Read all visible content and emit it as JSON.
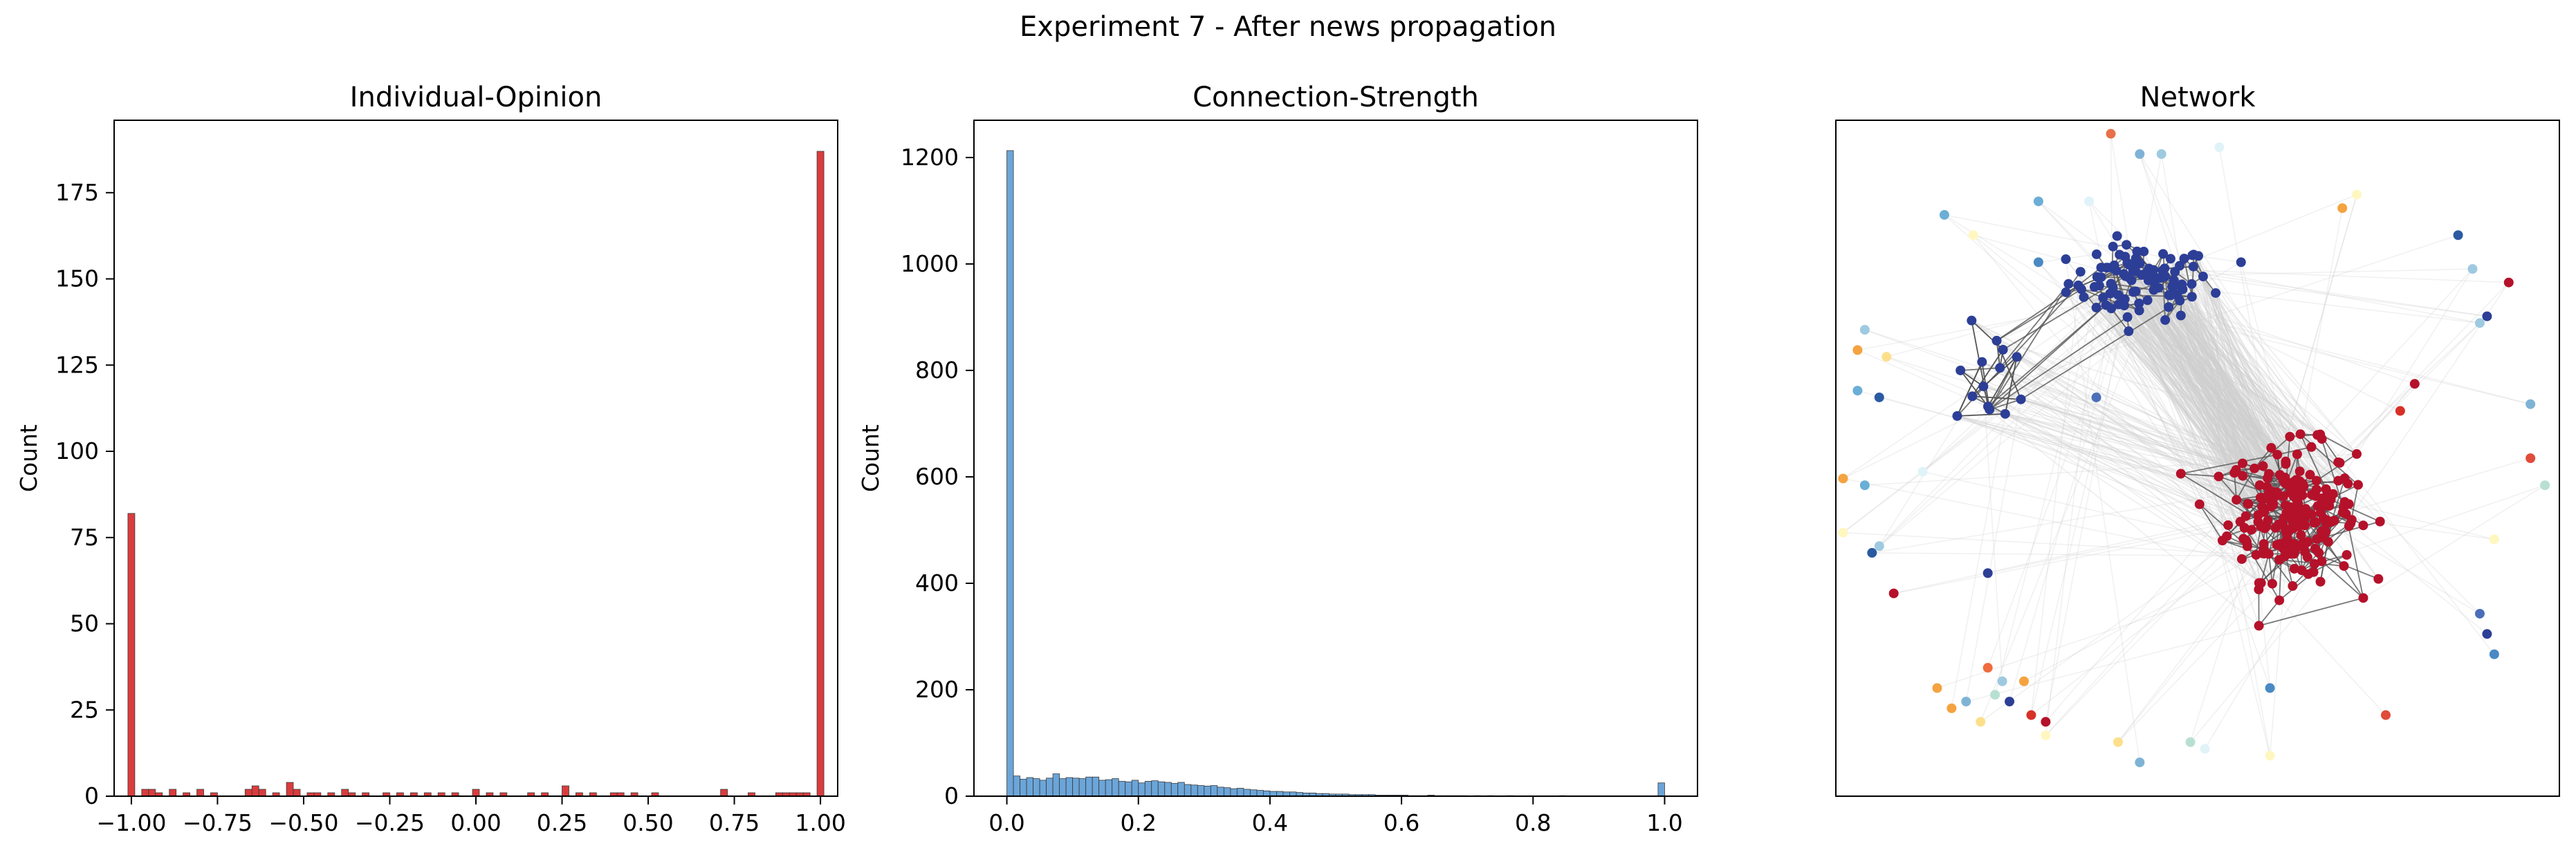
{
  "figure": {
    "suptitle": "Experiment 7 - After news propagation"
  },
  "chart_data": [
    {
      "type": "bar",
      "title": "Individual-Opinion",
      "xlabel": "",
      "ylabel": "Count",
      "xlim": [
        -1.05,
        1.05
      ],
      "ylim": [
        0,
        196
      ],
      "xticks": [
        -1.0,
        -0.75,
        -0.5,
        -0.25,
        0.0,
        0.25,
        0.5,
        0.75,
        1.0
      ],
      "xtick_labels": [
        "−1.00",
        "−0.75",
        "−0.50",
        "−0.25",
        "0.00",
        "0.25",
        "0.50",
        "0.75",
        "1.00"
      ],
      "yticks": [
        0,
        25,
        50,
        75,
        100,
        125,
        150,
        175
      ],
      "ytick_labels": [
        "0",
        "25",
        "50",
        "75",
        "100",
        "125",
        "150",
        "175"
      ],
      "bar_color": "#d62728",
      "bin_width": 0.02,
      "bins": [
        {
          "x": -1.0,
          "count": 82
        },
        {
          "x": -0.96,
          "count": 2
        },
        {
          "x": -0.94,
          "count": 2
        },
        {
          "x": -0.92,
          "count": 1
        },
        {
          "x": -0.88,
          "count": 2
        },
        {
          "x": -0.84,
          "count": 1
        },
        {
          "x": -0.8,
          "count": 2
        },
        {
          "x": -0.76,
          "count": 1
        },
        {
          "x": -0.66,
          "count": 2
        },
        {
          "x": -0.64,
          "count": 3
        },
        {
          "x": -0.62,
          "count": 2
        },
        {
          "x": -0.58,
          "count": 1
        },
        {
          "x": -0.54,
          "count": 4
        },
        {
          "x": -0.52,
          "count": 2
        },
        {
          "x": -0.48,
          "count": 1
        },
        {
          "x": -0.46,
          "count": 1
        },
        {
          "x": -0.42,
          "count": 1
        },
        {
          "x": -0.38,
          "count": 2
        },
        {
          "x": -0.36,
          "count": 1
        },
        {
          "x": -0.32,
          "count": 1
        },
        {
          "x": -0.26,
          "count": 1
        },
        {
          "x": -0.22,
          "count": 1
        },
        {
          "x": -0.18,
          "count": 1
        },
        {
          "x": -0.14,
          "count": 1
        },
        {
          "x": -0.1,
          "count": 1
        },
        {
          "x": -0.06,
          "count": 1
        },
        {
          "x": 0.0,
          "count": 2
        },
        {
          "x": 0.04,
          "count": 1
        },
        {
          "x": 0.08,
          "count": 1
        },
        {
          "x": 0.16,
          "count": 1
        },
        {
          "x": 0.2,
          "count": 1
        },
        {
          "x": 0.26,
          "count": 3
        },
        {
          "x": 0.3,
          "count": 1
        },
        {
          "x": 0.34,
          "count": 1
        },
        {
          "x": 0.4,
          "count": 1
        },
        {
          "x": 0.42,
          "count": 1
        },
        {
          "x": 0.46,
          "count": 1
        },
        {
          "x": 0.52,
          "count": 1
        },
        {
          "x": 0.72,
          "count": 2
        },
        {
          "x": 0.8,
          "count": 1
        },
        {
          "x": 0.88,
          "count": 1
        },
        {
          "x": 0.9,
          "count": 1
        },
        {
          "x": 0.92,
          "count": 1
        },
        {
          "x": 0.94,
          "count": 1
        },
        {
          "x": 0.96,
          "count": 1
        },
        {
          "x": 1.0,
          "count": 187
        }
      ]
    },
    {
      "type": "bar",
      "title": "Connection-Strength",
      "xlabel": "",
      "ylabel": "Count",
      "xlim": [
        -0.05,
        1.05
      ],
      "ylim": [
        0,
        1270
      ],
      "xticks": [
        0.0,
        0.2,
        0.4,
        0.6,
        0.8,
        1.0
      ],
      "xtick_labels": [
        "0.0",
        "0.2",
        "0.4",
        "0.6",
        "0.8",
        "1.0"
      ],
      "yticks": [
        0,
        200,
        400,
        600,
        800,
        1000,
        1200
      ],
      "ytick_labels": [
        "0",
        "200",
        "400",
        "600",
        "800",
        "1000",
        "1200"
      ],
      "bar_color": "#5b9bd5",
      "bin_width": 0.01,
      "counts": [
        1213,
        38,
        32,
        35,
        33,
        30,
        34,
        42,
        33,
        35,
        34,
        33,
        36,
        36,
        30,
        31,
        33,
        28,
        27,
        30,
        25,
        28,
        29,
        27,
        26,
        24,
        26,
        22,
        21,
        20,
        19,
        20,
        17,
        16,
        14,
        15,
        13,
        12,
        11,
        10,
        9,
        9,
        8,
        8,
        7,
        6,
        6,
        5,
        5,
        4,
        4,
        4,
        3,
        3,
        3,
        3,
        2,
        2,
        2,
        2,
        2,
        1,
        1,
        1,
        2,
        1,
        1,
        1,
        1,
        1,
        0,
        1,
        0,
        1,
        0,
        0,
        1,
        0,
        0,
        0,
        0,
        0,
        0,
        0,
        1,
        0,
        0,
        0,
        0,
        0,
        0,
        0,
        0,
        0,
        0,
        0,
        0,
        0,
        0,
        0,
        25
      ]
    },
    {
      "type": "scatter",
      "title": "Network",
      "grid": false,
      "axes_ticks": false,
      "colors": {
        "cluster_a": "#2c3e96",
        "cluster_b": "#b5112a",
        "edge_dark": "#555555",
        "edge_light": "#cfcfcf"
      },
      "node_groups": [
        {
          "name": "cluster_a",
          "count": 95,
          "center": [
            0.42,
            0.76
          ],
          "spread": [
            0.09,
            0.05
          ],
          "color": "#2c3e96"
        },
        {
          "name": "cluster_a_tail",
          "count": 14,
          "center": [
            0.22,
            0.62
          ],
          "spread": [
            0.05,
            0.07
          ],
          "color": "#2c3e96"
        },
        {
          "name": "cluster_b",
          "count": 210,
          "center": [
            0.63,
            0.42
          ],
          "spread": [
            0.08,
            0.09
          ],
          "color": "#b5112a"
        }
      ],
      "isolated_nodes": [
        {
          "x": 0.38,
          "y": 0.98,
          "c": "#e8704a"
        },
        {
          "x": 0.42,
          "y": 0.95,
          "c": "#7fb3d5"
        },
        {
          "x": 0.45,
          "y": 0.95,
          "c": "#9ecae1"
        },
        {
          "x": 0.53,
          "y": 0.96,
          "c": "#e0f3f8"
        },
        {
          "x": 0.15,
          "y": 0.86,
          "c": "#6baed6"
        },
        {
          "x": 0.28,
          "y": 0.88,
          "c": "#6baed6"
        },
        {
          "x": 0.35,
          "y": 0.88,
          "c": "#e0f3f8"
        },
        {
          "x": 0.19,
          "y": 0.83,
          "c": "#fff7c0"
        },
        {
          "x": 0.28,
          "y": 0.79,
          "c": "#4a89c4"
        },
        {
          "x": 0.56,
          "y": 0.79,
          "c": "#2c3e96"
        },
        {
          "x": 0.7,
          "y": 0.87,
          "c": "#f4a340"
        },
        {
          "x": 0.72,
          "y": 0.89,
          "c": "#fff7c0"
        },
        {
          "x": 0.86,
          "y": 0.83,
          "c": "#2b5aa3"
        },
        {
          "x": 0.88,
          "y": 0.78,
          "c": "#9ecae1"
        },
        {
          "x": 0.93,
          "y": 0.76,
          "c": "#b5112a"
        },
        {
          "x": 0.9,
          "y": 0.71,
          "c": "#2c3e96"
        },
        {
          "x": 0.89,
          "y": 0.7,
          "c": "#9ecae1"
        },
        {
          "x": 0.04,
          "y": 0.69,
          "c": "#9ecae1"
        },
        {
          "x": 0.03,
          "y": 0.66,
          "c": "#f4a340"
        },
        {
          "x": 0.07,
          "y": 0.65,
          "c": "#fddf8b"
        },
        {
          "x": 0.03,
          "y": 0.6,
          "c": "#6baed6"
        },
        {
          "x": 0.06,
          "y": 0.59,
          "c": "#2b5aa3"
        },
        {
          "x": 0.36,
          "y": 0.59,
          "c": "#4a6fb8"
        },
        {
          "x": 0.96,
          "y": 0.58,
          "c": "#7fb3d5"
        },
        {
          "x": 0.8,
          "y": 0.61,
          "c": "#b5112a"
        },
        {
          "x": 0.78,
          "y": 0.57,
          "c": "#d73027"
        },
        {
          "x": 0.96,
          "y": 0.5,
          "c": "#e04b3a"
        },
        {
          "x": 0.12,
          "y": 0.48,
          "c": "#e0f3f8"
        },
        {
          "x": 0.01,
          "y": 0.47,
          "c": "#f4a340"
        },
        {
          "x": 0.98,
          "y": 0.46,
          "c": "#b8e0d2"
        },
        {
          "x": 0.04,
          "y": 0.46,
          "c": "#6baed6"
        },
        {
          "x": 0.01,
          "y": 0.39,
          "c": "#fff7c0"
        },
        {
          "x": 0.06,
          "y": 0.37,
          "c": "#9ecae1"
        },
        {
          "x": 0.05,
          "y": 0.36,
          "c": "#2b5aa3"
        },
        {
          "x": 0.91,
          "y": 0.38,
          "c": "#fff7c0"
        },
        {
          "x": 0.08,
          "y": 0.3,
          "c": "#b5112a"
        },
        {
          "x": 0.21,
          "y": 0.33,
          "c": "#2c3e96"
        },
        {
          "x": 0.89,
          "y": 0.27,
          "c": "#4a6fb8"
        },
        {
          "x": 0.9,
          "y": 0.24,
          "c": "#2c3e96"
        },
        {
          "x": 0.91,
          "y": 0.21,
          "c": "#4a89c4"
        },
        {
          "x": 0.21,
          "y": 0.19,
          "c": "#f06b3d"
        },
        {
          "x": 0.23,
          "y": 0.17,
          "c": "#9ecae1"
        },
        {
          "x": 0.24,
          "y": 0.14,
          "c": "#2c3e96"
        },
        {
          "x": 0.26,
          "y": 0.17,
          "c": "#f4a340"
        },
        {
          "x": 0.22,
          "y": 0.15,
          "c": "#b8e0d2"
        },
        {
          "x": 0.14,
          "y": 0.16,
          "c": "#f4a340"
        },
        {
          "x": 0.18,
          "y": 0.14,
          "c": "#7fb3d5"
        },
        {
          "x": 0.16,
          "y": 0.13,
          "c": "#f4a340"
        },
        {
          "x": 0.2,
          "y": 0.11,
          "c": "#fddf8b"
        },
        {
          "x": 0.29,
          "y": 0.11,
          "c": "#b5112a"
        },
        {
          "x": 0.27,
          "y": 0.12,
          "c": "#d73027"
        },
        {
          "x": 0.39,
          "y": 0.08,
          "c": "#fddf8b"
        },
        {
          "x": 0.42,
          "y": 0.05,
          "c": "#7fb3d5"
        },
        {
          "x": 0.49,
          "y": 0.08,
          "c": "#b8e0d2"
        },
        {
          "x": 0.51,
          "y": 0.07,
          "c": "#e0f3f8"
        },
        {
          "x": 0.6,
          "y": 0.06,
          "c": "#fff7c0"
        },
        {
          "x": 0.6,
          "y": 0.16,
          "c": "#4a89c4"
        },
        {
          "x": 0.76,
          "y": 0.12,
          "c": "#e04b3a"
        },
        {
          "x": 0.29,
          "y": 0.09,
          "c": "#fff7c0"
        }
      ]
    }
  ]
}
